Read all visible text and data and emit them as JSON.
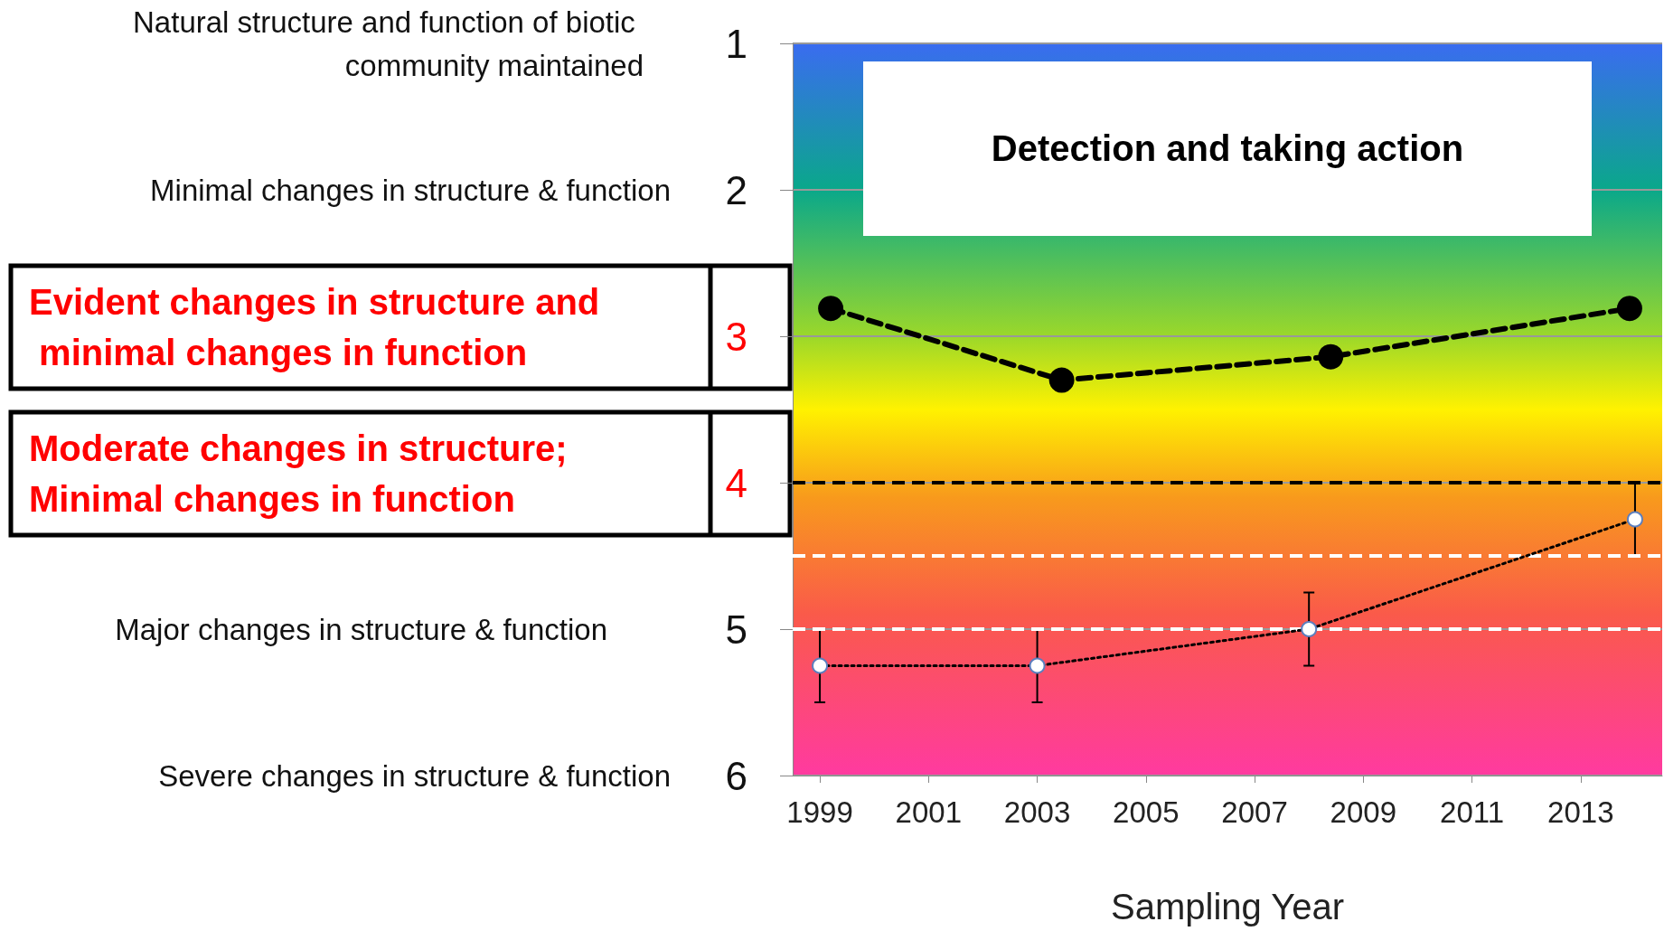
{
  "chart_data": {
    "type": "line",
    "xlabel": "Sampling Year",
    "xlim": [
      1998.5,
      2014.5
    ],
    "xticks": [
      1999,
      2001,
      2003,
      2005,
      2007,
      2009,
      2011,
      2013
    ],
    "ylim": [
      6,
      1
    ],
    "yticks": [
      1,
      2,
      3,
      4,
      5,
      6
    ],
    "grid": "y",
    "series": [
      {
        "color": "#000000",
        "x": [
          1999.2,
          2003.45,
          2008.4,
          2013.9
        ],
        "values": [
          2.81,
          3.3,
          3.14,
          2.81
        ],
        "marker": "circle",
        "line_style": "dashed"
      },
      {
        "color": "#ffffff",
        "x": [
          1999,
          2003,
          2008,
          2014
        ],
        "values": [
          5.25,
          5.25,
          5.0,
          4.25
        ],
        "errors": [
          0.25,
          0.25,
          0.25,
          0.25
        ],
        "marker": "circle",
        "line_style": "dotted"
      }
    ],
    "ref_lines": [
      {
        "axis": "y",
        "value": 4,
        "color": "#000000",
        "line_style": "dashed"
      },
      {
        "axis": "y",
        "value": 4.5,
        "color": "#ffffff",
        "line_style": "dashed"
      },
      {
        "axis": "y",
        "value": 5,
        "color": "#ffffff",
        "line_style": "dashed"
      }
    ],
    "annotations": [
      "Natural structure and function of biotic community maintained",
      "Minimal changes in structure & function",
      "Evident changes in structure and minimal changes in function",
      "Moderate changes in structure; Minimal changes in function",
      "Major changes in structure & function",
      "Severe changes in structure & function",
      "Detection and taking action"
    ]
  }
}
